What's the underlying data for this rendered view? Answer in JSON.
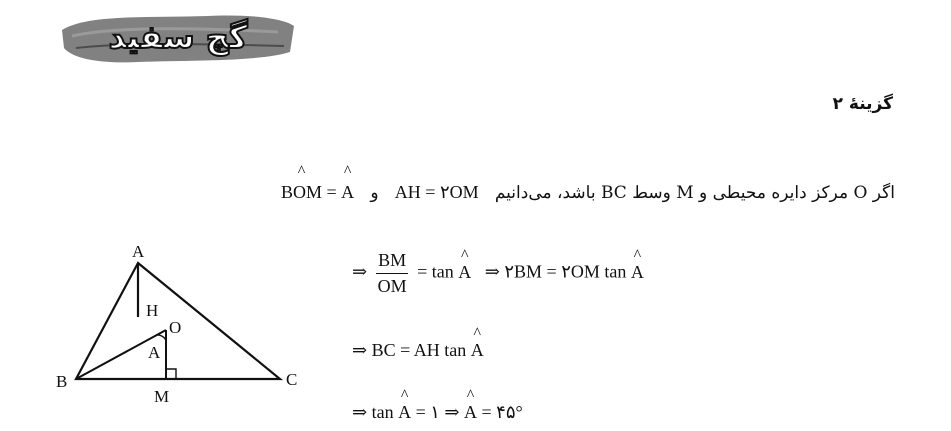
{
  "brand": {
    "logo_text": "گچ سفید"
  },
  "heading": "گزینهٔ ۲",
  "statement": {
    "part1": "اگر O مرکز دایره محیطی و M وسط BC باشد، می‌دانیم",
    "eq1": "AH = ۲OM",
    "conj": "و",
    "eq2_left": "BOM",
    "eq2_right": "A"
  },
  "lines": [
    {
      "arrow": "⇒",
      "frac_num": "BM",
      "frac_den": "OM",
      "rest1": "= tan",
      "hat1": "A",
      "arrow2": "⇒",
      "rest2": "۲BM = ۲OM tan",
      "hat2": "A"
    },
    {
      "arrow": "⇒",
      "rest1": "BC = AH tan",
      "hat1": "A"
    },
    {
      "arrow": "⇒",
      "rest1": "tan",
      "hat1": "A",
      "rest2": "= ۱ ⇒",
      "hat2": "A",
      "rest3": "= ۴۵°"
    }
  ],
  "diagram": {
    "labels": {
      "A": "A",
      "B": "B",
      "C": "C",
      "H": "H",
      "O": "O",
      "M": "M",
      "angle": "A"
    }
  }
}
